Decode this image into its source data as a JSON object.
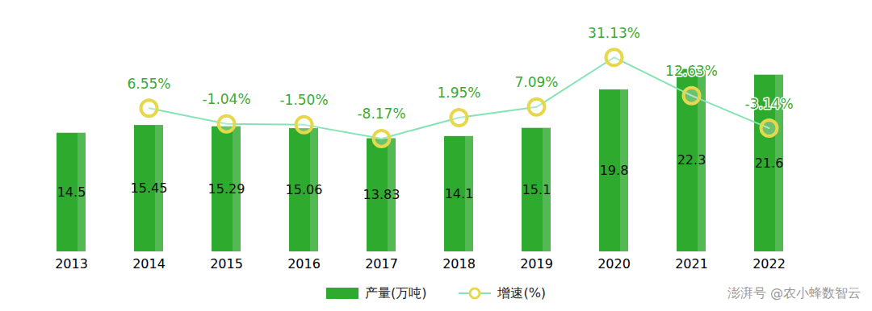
{
  "chart_data": {
    "type": "bar",
    "categories": [
      "2013",
      "2014",
      "2015",
      "2016",
      "2017",
      "2018",
      "2019",
      "2020",
      "2021",
      "2022"
    ],
    "series": [
      {
        "name": "产量(万吨)",
        "type": "bar",
        "color": "#2eaa2e",
        "values": [
          14.5,
          15.45,
          15.29,
          15.06,
          13.83,
          14.1,
          15.1,
          19.8,
          22.3,
          21.6
        ]
      },
      {
        "name": "增速(%)",
        "type": "line",
        "axis": "y2",
        "color": "#86e3b5",
        "marker": "circle",
        "values": [
          null,
          6.55,
          -1.04,
          -1.5,
          -8.17,
          1.95,
          7.09,
          31.13,
          12.63,
          -3.14
        ],
        "value_labels": [
          null,
          "6.55%",
          "-1.04%",
          "-1.50%",
          "-8.17%",
          "1.95%",
          "7.09%",
          "31.13%",
          "12.63%",
          "-3.14%"
        ]
      }
    ],
    "ylim": [
      0,
      26
    ],
    "y2lim": [
      -63,
      40
    ],
    "tick_labels": "x",
    "data_labels": true,
    "legend": "bottom",
    "annotations": [
      "澎湃号 @农小蜂数智云"
    ]
  }
}
